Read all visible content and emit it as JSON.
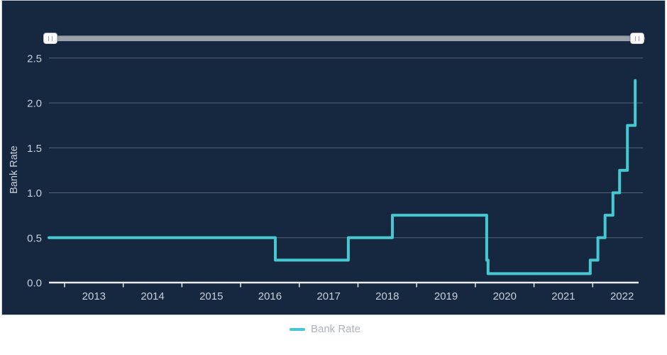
{
  "colors": {
    "page_background": "#FFFFFF",
    "panel_background": "#162840",
    "panel_border": "#C9CDD2",
    "series_line": "#45C8D1",
    "grid_line": "rgba(255,255,255,0.28)",
    "axis_line": "#E9EBEE",
    "tick_label": "#C9CED8",
    "axis_title": "#CBD0D9",
    "slider_track": "#99A0AB",
    "slider_handle": "#FBFBFB",
    "legend_label": "#AEB4BE"
  },
  "range_slider": {
    "full_range_selected": true
  },
  "chart_data": {
    "type": "line",
    "step": "after",
    "title": "",
    "grid": true,
    "series": [
      {
        "name": "Bank Rate",
        "color": "#45C8D1",
        "initial_value": 0.5,
        "changes": [
          {
            "date": "2016-08-04",
            "value": 0.25
          },
          {
            "date": "2017-11-02",
            "value": 0.5
          },
          {
            "date": "2018-08-02",
            "value": 0.75
          },
          {
            "date": "2020-03-11",
            "value": 0.25
          },
          {
            "date": "2020-03-19",
            "value": 0.1
          },
          {
            "date": "2021-12-16",
            "value": 0.25
          },
          {
            "date": "2022-02-03",
            "value": 0.5
          },
          {
            "date": "2022-03-17",
            "value": 0.75
          },
          {
            "date": "2022-05-05",
            "value": 1.0
          },
          {
            "date": "2022-06-16",
            "value": 1.25
          },
          {
            "date": "2022-08-04",
            "value": 1.75
          },
          {
            "date": "2022-09-22",
            "value": 2.25
          }
        ]
      }
    ],
    "x_axis": {
      "tick_labels": [
        "2013",
        "2014",
        "2015",
        "2016",
        "2017",
        "2018",
        "2019",
        "2020",
        "2021",
        "2022"
      ],
      "range": [
        "2012-09",
        "2022-09"
      ]
    },
    "y_axis": {
      "title": "Bank Rate",
      "tick_labels": [
        "0.0",
        "0.5",
        "1.0",
        "1.5",
        "2.0",
        "2.5"
      ],
      "min": 0,
      "max": 2.5,
      "tick_step": 0.5
    },
    "legend": {
      "position": "bottom",
      "items": [
        {
          "label": "Bank Rate"
        }
      ]
    }
  }
}
